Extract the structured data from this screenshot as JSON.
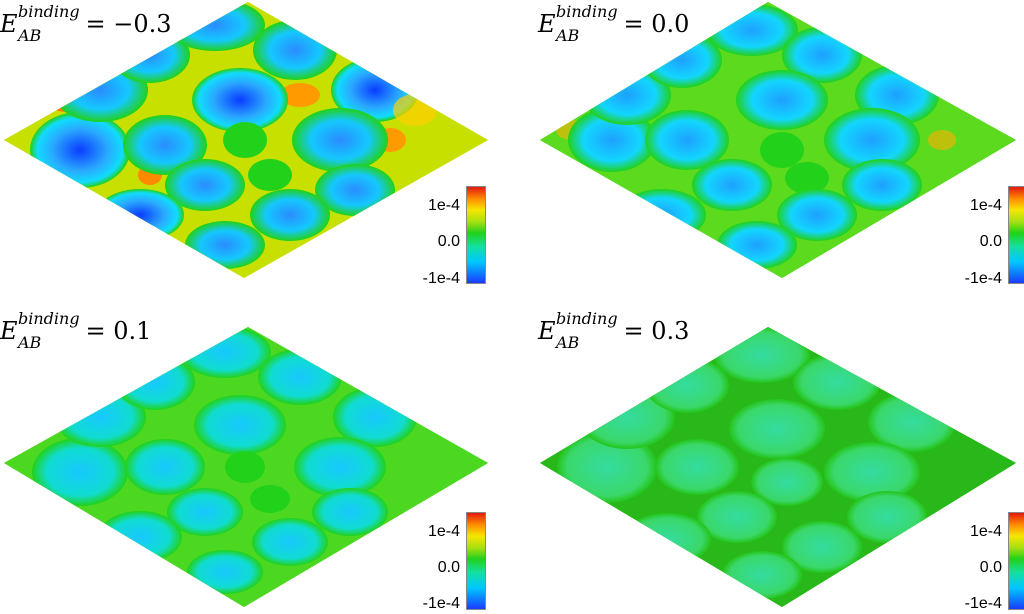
{
  "panels": [
    {
      "id": "p1",
      "label": {
        "symbol": "E",
        "sup": "binding",
        "sub": "AB",
        "rhs": "= −0.3"
      },
      "colorbar": {
        "ticks": [
          "1e-4",
          "0.0",
          "-1e-4"
        ]
      },
      "background": "#22d11a",
      "theme": "strong-contrast"
    },
    {
      "id": "p2",
      "label": {
        "symbol": "E",
        "sup": "binding",
        "sub": "AB",
        "rhs": "= 0.0"
      },
      "colorbar": {
        "ticks": [
          "1e-4",
          "0.0",
          "-1e-4"
        ]
      },
      "background": "#26d321",
      "theme": "medium-contrast"
    },
    {
      "id": "p3",
      "label": {
        "symbol": "E",
        "sup": "binding",
        "sub": "AB",
        "rhs": "= 0.1"
      },
      "colorbar": {
        "ticks": [
          "1e-4",
          "0.0",
          "-1e-4"
        ]
      },
      "background": "#26d321",
      "theme": "low-contrast"
    },
    {
      "id": "p4",
      "label": {
        "symbol": "E",
        "sup": "binding",
        "sub": "AB",
        "rhs": "= 0.3"
      },
      "colorbar": {
        "ticks": [
          "1e-4",
          "0.0",
          "-1e-4"
        ]
      },
      "background": "#2ad62a",
      "theme": "cell-network"
    }
  ],
  "colors": {
    "blue_dark": "#0a3cff",
    "blue": "#2aa8ff",
    "cyan": "#10dcff",
    "green": "#22d11a",
    "yellow": "#f2e600",
    "orange": "#ff8a00",
    "red": "#e11a10"
  }
}
